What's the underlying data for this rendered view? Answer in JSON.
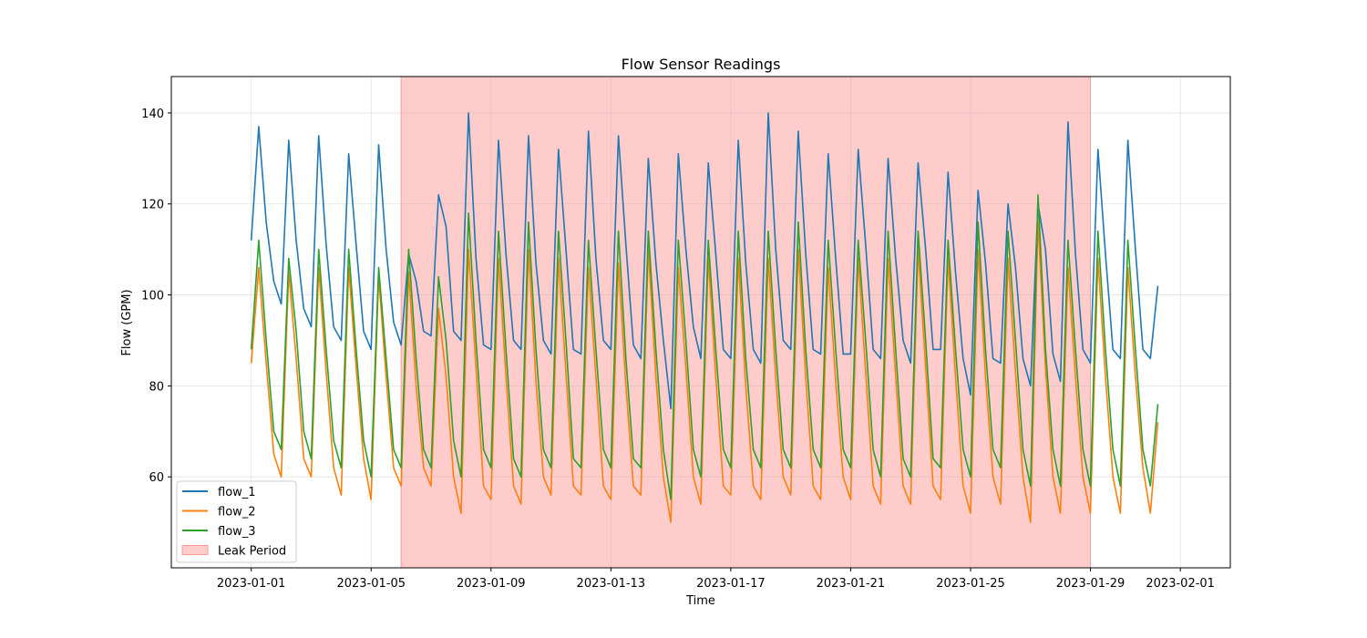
{
  "chart_data": {
    "type": "line",
    "title": "Flow Sensor Readings",
    "xlabel": "Time",
    "ylabel": "Flow (GPM)",
    "x_range": [
      "2022-12-29T08:00",
      "2023-02-02T16:00"
    ],
    "ylim": [
      40,
      148
    ],
    "x_ticks": [
      "2023-01-01",
      "2023-01-05",
      "2023-01-09",
      "2023-01-13",
      "2023-01-17",
      "2023-01-21",
      "2023-01-25",
      "2023-01-29",
      "2023-02-01"
    ],
    "y_ticks": [
      60,
      80,
      100,
      120,
      140
    ],
    "grid": true,
    "legend_position": "lower-left",
    "shaded_region": {
      "label": "Leak Period",
      "start": "2023-01-06",
      "end": "2023-01-29",
      "color": "#ff9999"
    },
    "x_sampling": {
      "start": "2023-01-01T00:00",
      "step_hours": 6
    },
    "series": [
      {
        "name": "flow_1",
        "color": "#1f77b4",
        "values": [
          112,
          137,
          116,
          103,
          98,
          134,
          112,
          97,
          93,
          135,
          111,
          93,
          90,
          131,
          111,
          92,
          88,
          133,
          110,
          94,
          89,
          109,
          103,
          92,
          91,
          122,
          115,
          92,
          90,
          140,
          108,
          89,
          88,
          134,
          109,
          90,
          88,
          135,
          107,
          90,
          87,
          132,
          110,
          88,
          87,
          136,
          108,
          90,
          88,
          135,
          111,
          89,
          86,
          130,
          107,
          90,
          75,
          131,
          110,
          93,
          86,
          129,
          109,
          88,
          86,
          134,
          107,
          88,
          85,
          140,
          110,
          90,
          88,
          136,
          109,
          88,
          87,
          131,
          108,
          87,
          87,
          132,
          111,
          88,
          86,
          130,
          108,
          90,
          85,
          129,
          110,
          88,
          88,
          127,
          105,
          86,
          78,
          123,
          107,
          86,
          85,
          120,
          106,
          86,
          80,
          120,
          110,
          87,
          81,
          138,
          109,
          88,
          85,
          132,
          109,
          88,
          86,
          134,
          110,
          88,
          86,
          102
        ]
      },
      {
        "name": "flow_2",
        "color": "#ff7f0e",
        "values": [
          85,
          106,
          85,
          65,
          60,
          105,
          86,
          64,
          60,
          106,
          83,
          62,
          56,
          106,
          84,
          64,
          55,
          104,
          82,
          62,
          58,
          105,
          80,
          62,
          58,
          97,
          82,
          60,
          52,
          110,
          84,
          58,
          55,
          108,
          82,
          58,
          54,
          110,
          81,
          60,
          56,
          108,
          83,
          58,
          56,
          106,
          82,
          58,
          55,
          107,
          80,
          58,
          56,
          110,
          82,
          60,
          50,
          106,
          84,
          60,
          54,
          108,
          82,
          58,
          56,
          108,
          80,
          58,
          55,
          108,
          82,
          60,
          56,
          110,
          82,
          58,
          55,
          106,
          81,
          60,
          55,
          108,
          83,
          58,
          54,
          108,
          82,
          58,
          54,
          110,
          84,
          58,
          55,
          108,
          82,
          58,
          52,
          110,
          82,
          60,
          54,
          108,
          83,
          60,
          50,
          116,
          84,
          60,
          52,
          106,
          82,
          60,
          52,
          108,
          82,
          60,
          52,
          106,
          82,
          62,
          52,
          72
        ]
      },
      {
        "name": "flow_3",
        "color": "#2ca02c",
        "values": [
          88,
          112,
          90,
          70,
          66,
          108,
          92,
          70,
          64,
          110,
          88,
          68,
          62,
          110,
          88,
          68,
          60,
          106,
          86,
          66,
          62,
          110,
          86,
          66,
          62,
          104,
          90,
          68,
          60,
          118,
          90,
          66,
          62,
          114,
          88,
          64,
          60,
          116,
          88,
          66,
          62,
          114,
          90,
          64,
          62,
          112,
          88,
          66,
          62,
          114,
          86,
          64,
          62,
          114,
          88,
          66,
          55,
          112,
          90,
          66,
          60,
          112,
          88,
          66,
          62,
          114,
          86,
          66,
          62,
          114,
          88,
          66,
          62,
          116,
          88,
          66,
          62,
          112,
          88,
          66,
          62,
          112,
          90,
          66,
          60,
          114,
          88,
          64,
          60,
          114,
          90,
          64,
          62,
          112,
          88,
          66,
          60,
          116,
          88,
          66,
          62,
          114,
          90,
          66,
          58,
          122,
          88,
          66,
          58,
          112,
          88,
          66,
          58,
          114,
          88,
          66,
          58,
          112,
          88,
          66,
          58,
          76
        ]
      }
    ]
  }
}
